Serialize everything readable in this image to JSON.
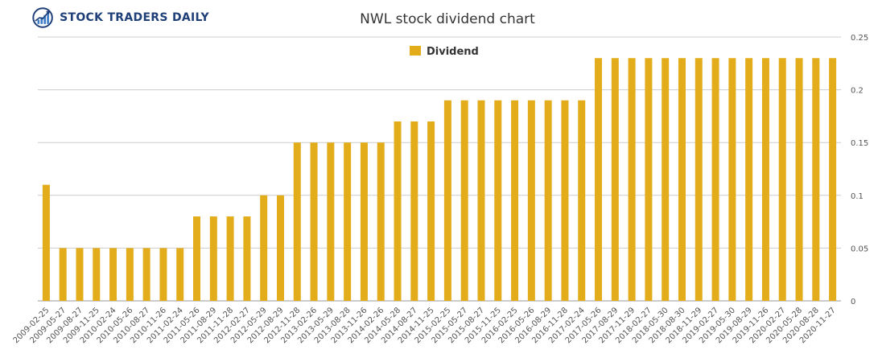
{
  "brand": {
    "name": "STOCK TRADERS DAILY"
  },
  "colors": {
    "bar": "#E2AC1B",
    "grid": "#cccccc",
    "logo_primary": "#1f3f78",
    "logo_accent": "#3d7cc9"
  },
  "chart_data": {
    "type": "bar",
    "title": "NWL stock dividend chart",
    "xlabel": "",
    "ylabel": "",
    "ylim": [
      0,
      0.25
    ],
    "yticks": [
      0,
      0.05,
      0.1,
      0.15,
      0.2,
      0.25
    ],
    "y_axis_side": "right",
    "grid": true,
    "legend_position": "top-center",
    "categories": [
      "2009-02-25",
      "2009-05-27",
      "2009-08-27",
      "2009-11-25",
      "2010-02-24",
      "2010-05-26",
      "2010-08-27",
      "2010-11-26",
      "2011-02-24",
      "2011-05-26",
      "2011-08-29",
      "2011-11-28",
      "2012-02-27",
      "2012-05-29",
      "2012-08-29",
      "2012-11-28",
      "2013-02-26",
      "2013-05-29",
      "2013-08-28",
      "2013-11-26",
      "2014-02-26",
      "2014-05-28",
      "2014-08-27",
      "2014-11-25",
      "2015-02-25",
      "2015-05-27",
      "2015-08-27",
      "2015-11-25",
      "2016-02-25",
      "2016-05-26",
      "2016-08-29",
      "2016-11-28",
      "2017-02-24",
      "2017-05-26",
      "2017-08-29",
      "2017-11-29",
      "2018-02-27",
      "2018-05-30",
      "2018-08-30",
      "2018-11-29",
      "2019-02-27",
      "2019-05-30",
      "2019-08-29",
      "2019-11-26",
      "2020-02-27",
      "2020-05-28",
      "2020-08-28",
      "2020-11-27"
    ],
    "series": [
      {
        "name": "Dividend",
        "values": [
          0.11,
          0.05,
          0.05,
          0.05,
          0.05,
          0.05,
          0.05,
          0.05,
          0.05,
          0.08,
          0.08,
          0.08,
          0.08,
          0.1,
          0.1,
          0.15,
          0.15,
          0.15,
          0.15,
          0.15,
          0.15,
          0.17,
          0.17,
          0.17,
          0.19,
          0.19,
          0.19,
          0.19,
          0.19,
          0.19,
          0.19,
          0.19,
          0.19,
          0.23,
          0.23,
          0.23,
          0.23,
          0.23,
          0.23,
          0.23,
          0.23,
          0.23,
          0.23,
          0.23,
          0.23,
          0.23,
          0.23,
          0.23
        ]
      }
    ]
  }
}
